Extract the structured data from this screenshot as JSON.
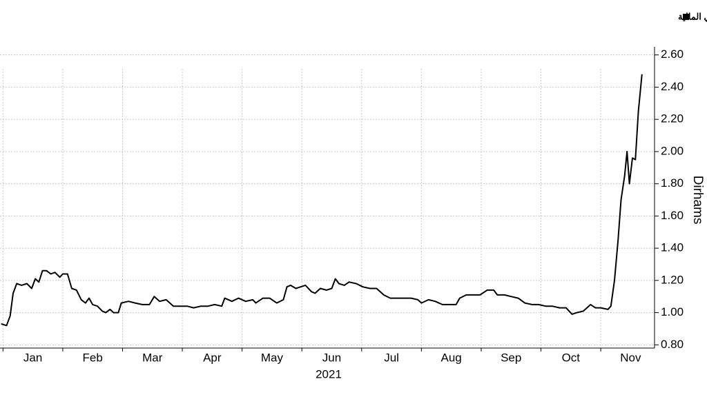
{
  "chart_data": {
    "type": "line",
    "xlabel": "2021",
    "ylabel": "Dirhams",
    "xlim": [
      -0.05,
      10.9
    ],
    "xticks": [
      {
        "value": 0,
        "label": "Jan"
      },
      {
        "value": 1,
        "label": "Feb"
      },
      {
        "value": 2,
        "label": "Mar"
      },
      {
        "value": 3,
        "label": "Apr"
      },
      {
        "value": 4,
        "label": "May"
      },
      {
        "value": 5,
        "label": "Jun"
      },
      {
        "value": 6,
        "label": "Jul"
      },
      {
        "value": 7,
        "label": "Aug"
      },
      {
        "value": 8,
        "label": "Sep"
      },
      {
        "value": 9,
        "label": "Oct"
      },
      {
        "value": 10,
        "label": "Nov"
      }
    ],
    "ylim": [
      0.78,
      2.65
    ],
    "yticks": [
      {
        "value": 0.8,
        "label": "0.80"
      },
      {
        "value": 1.0,
        "label": "1.00"
      },
      {
        "value": 1.2,
        "label": "1.20"
      },
      {
        "value": 1.4,
        "label": "1.40"
      },
      {
        "value": 1.6,
        "label": "1.60"
      },
      {
        "value": 1.8,
        "label": "1.80"
      },
      {
        "value": 2.0,
        "label": "2.00"
      },
      {
        "value": 2.2,
        "label": "2.20"
      },
      {
        "value": 2.4,
        "label": "2.40"
      },
      {
        "value": 2.6,
        "label": "2.60"
      }
    ],
    "grid": true,
    "legend": "top-right",
    "x": [
      -0.03,
      0.06,
      0.12,
      0.17,
      0.23,
      0.31,
      0.4,
      0.48,
      0.54,
      0.6,
      0.66,
      0.73,
      0.8,
      0.87,
      0.95,
      1.0,
      1.08,
      1.15,
      1.23,
      1.31,
      1.38,
      1.44,
      1.5,
      1.58,
      1.66,
      1.72,
      1.79,
      1.85,
      1.93,
      1.98,
      2.1,
      2.21,
      2.33,
      2.45,
      2.53,
      2.62,
      2.73,
      2.85,
      2.96,
      3.08,
      3.19,
      3.31,
      3.43,
      3.54,
      3.66,
      3.71,
      3.83,
      3.94,
      4.06,
      4.18,
      4.23,
      4.35,
      4.46,
      4.58,
      4.69,
      4.75,
      4.81,
      4.9,
      4.98,
      5.06,
      5.16,
      5.22,
      5.31,
      5.41,
      5.5,
      5.56,
      5.62,
      5.71,
      5.79,
      5.91,
      6.02,
      6.14,
      6.25,
      6.37,
      6.48,
      6.6,
      6.71,
      6.83,
      6.94,
      7.0,
      7.12,
      7.23,
      7.35,
      7.46,
      7.58,
      7.64,
      7.75,
      7.87,
      7.98,
      8.1,
      8.21,
      8.27,
      8.39,
      8.5,
      8.62,
      8.73,
      8.85,
      8.96,
      9.08,
      9.19,
      9.31,
      9.42,
      9.52,
      9.6,
      9.71,
      9.83,
      9.91,
      10.0,
      10.12,
      10.17,
      10.23,
      10.29,
      10.34,
      10.4,
      10.44,
      10.48,
      10.53,
      10.58,
      10.63,
      10.69
    ],
    "series": [
      {
        "name": "السعر الأخير لشركة بورصة دبي المالية",
        "color": "#000000",
        "values": [
          0.93,
          0.92,
          0.98,
          1.12,
          1.18,
          1.17,
          1.18,
          1.15,
          1.21,
          1.19,
          1.26,
          1.26,
          1.24,
          1.25,
          1.22,
          1.24,
          1.24,
          1.15,
          1.14,
          1.08,
          1.06,
          1.09,
          1.05,
          1.04,
          1.01,
          1.0,
          1.02,
          1.0,
          1.0,
          1.06,
          1.07,
          1.06,
          1.05,
          1.05,
          1.1,
          1.07,
          1.08,
          1.04,
          1.04,
          1.04,
          1.03,
          1.04,
          1.04,
          1.05,
          1.04,
          1.09,
          1.07,
          1.09,
          1.07,
          1.08,
          1.06,
          1.09,
          1.09,
          1.06,
          1.08,
          1.16,
          1.17,
          1.15,
          1.16,
          1.17,
          1.13,
          1.12,
          1.15,
          1.14,
          1.15,
          1.21,
          1.18,
          1.17,
          1.19,
          1.18,
          1.16,
          1.15,
          1.15,
          1.11,
          1.09,
          1.09,
          1.09,
          1.09,
          1.08,
          1.06,
          1.08,
          1.07,
          1.05,
          1.05,
          1.05,
          1.09,
          1.11,
          1.11,
          1.11,
          1.14,
          1.14,
          1.11,
          1.11,
          1.1,
          1.09,
          1.06,
          1.05,
          1.05,
          1.04,
          1.04,
          1.03,
          1.03,
          0.99,
          1.0,
          1.01,
          1.05,
          1.03,
          1.03,
          1.02,
          1.04,
          1.2,
          1.45,
          1.7,
          1.85,
          2.0,
          1.8,
          1.96,
          1.95,
          2.25,
          2.48
        ]
      }
    ]
  }
}
